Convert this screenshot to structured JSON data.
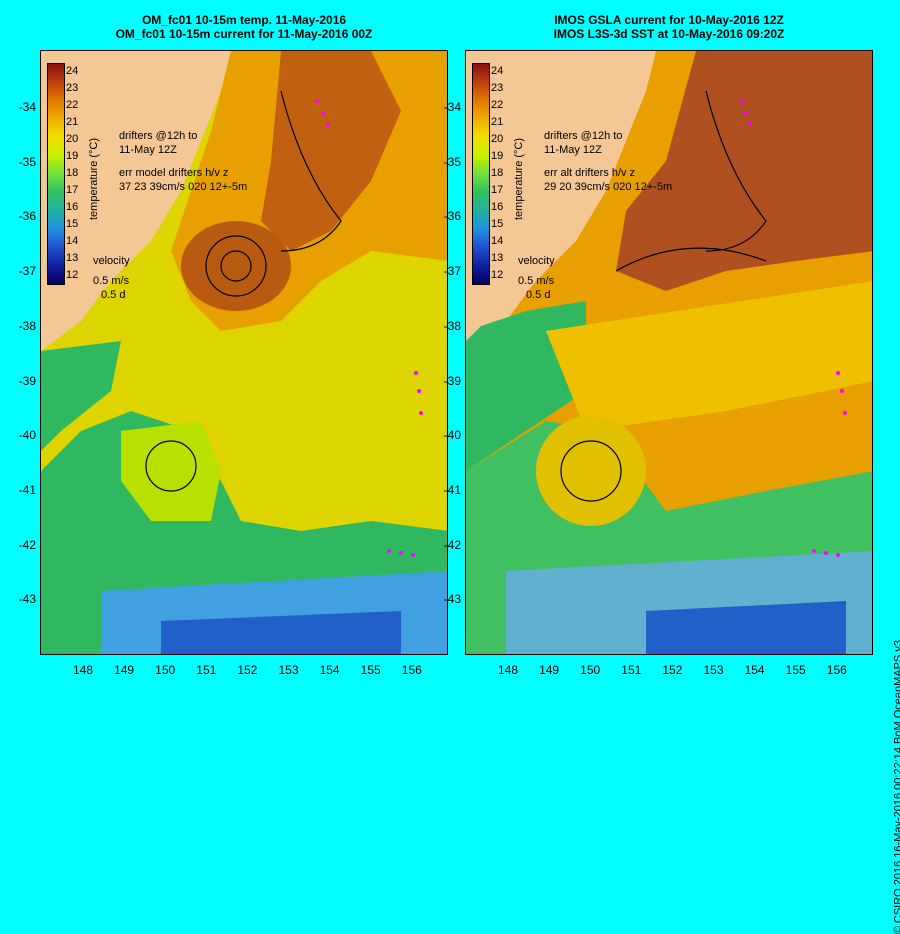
{
  "left": {
    "title1": "OM_fc01 10-15m temp. 11-May-2016",
    "title2": "OM_fc01 10-15m current for 11-May-2016 00Z",
    "legend_drifters": "drifters @12h to\n11-May 12Z",
    "legend_err": "err model drifters h/v z\n37 23 39cm/s 020 12+-5m"
  },
  "right": {
    "title1": "IMOS GSLA current for 10-May-2016 12Z",
    "title2": "IMOS L3S-3d SST at 10-May-2016 09:20Z",
    "legend_drifters": "drifters @12h to\n11-May 12Z",
    "legend_err": "err alt drifters h/v z\n29 20 39cm/s 020 12+-5m"
  },
  "velocity_label": "velocity",
  "velocity_scale": "0.5 m/s",
  "velocity_time": "0.5 d",
  "colorbar_title": "temperature (°C)",
  "colorbar_ticks": [
    "24",
    "23",
    "22",
    "21",
    "20",
    "19",
    "18",
    "17",
    "16",
    "15",
    "14",
    "13",
    "12"
  ],
  "lat_ticks": [
    "-34",
    "-35",
    "-36",
    "-37",
    "-38",
    "-39",
    "-40",
    "-41",
    "-42",
    "-43"
  ],
  "lon_ticks": [
    "148",
    "149",
    "150",
    "151",
    "152",
    "153",
    "154",
    "155",
    "156"
  ],
  "credit": "© CSIRO 2016   16-May-2016 00:22:14 BoM OceanMAPS v3",
  "colors": {
    "background": "#00ffff",
    "land": "#f4c794",
    "drifter": "#ff00ff"
  }
}
